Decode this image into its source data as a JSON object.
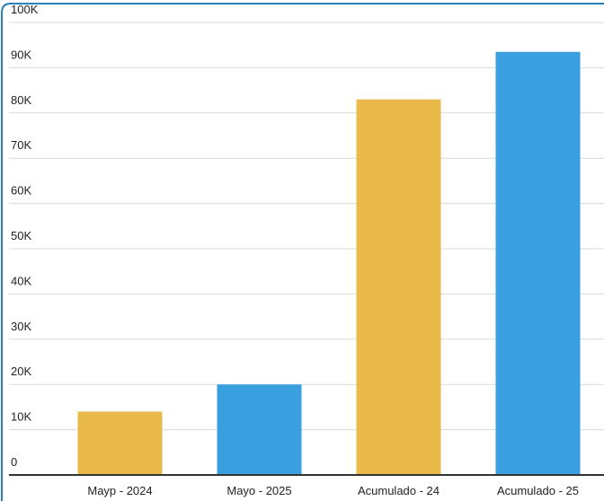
{
  "chart_data": {
    "type": "bar",
    "categories": [
      "Mayp - 2024",
      "Mayo - 2025",
      "Acumulado - 24",
      "Acumulado - 25"
    ],
    "values": [
      14000,
      20000,
      83000,
      93500
    ],
    "colors": [
      "#e9b949",
      "#3a9fdf",
      "#e9b949",
      "#3a9fdf"
    ],
    "ylim": [
      0,
      100000
    ],
    "yticks": [
      0,
      {
        "value": 10000,
        "label": "10K"
      },
      {
        "value": 20000,
        "label": "20K"
      },
      {
        "value": 30000,
        "label": "30K"
      },
      {
        "value": 40000,
        "label": "40K"
      },
      {
        "value": 50000,
        "label": "50K"
      },
      {
        "value": 60000,
        "label": "60K"
      },
      {
        "value": 70000,
        "label": "70K"
      },
      {
        "value": 80000,
        "label": "80K"
      },
      {
        "value": 90000,
        "label": "90K"
      },
      {
        "value": 100000,
        "label": "100K"
      }
    ],
    "grid": true
  }
}
